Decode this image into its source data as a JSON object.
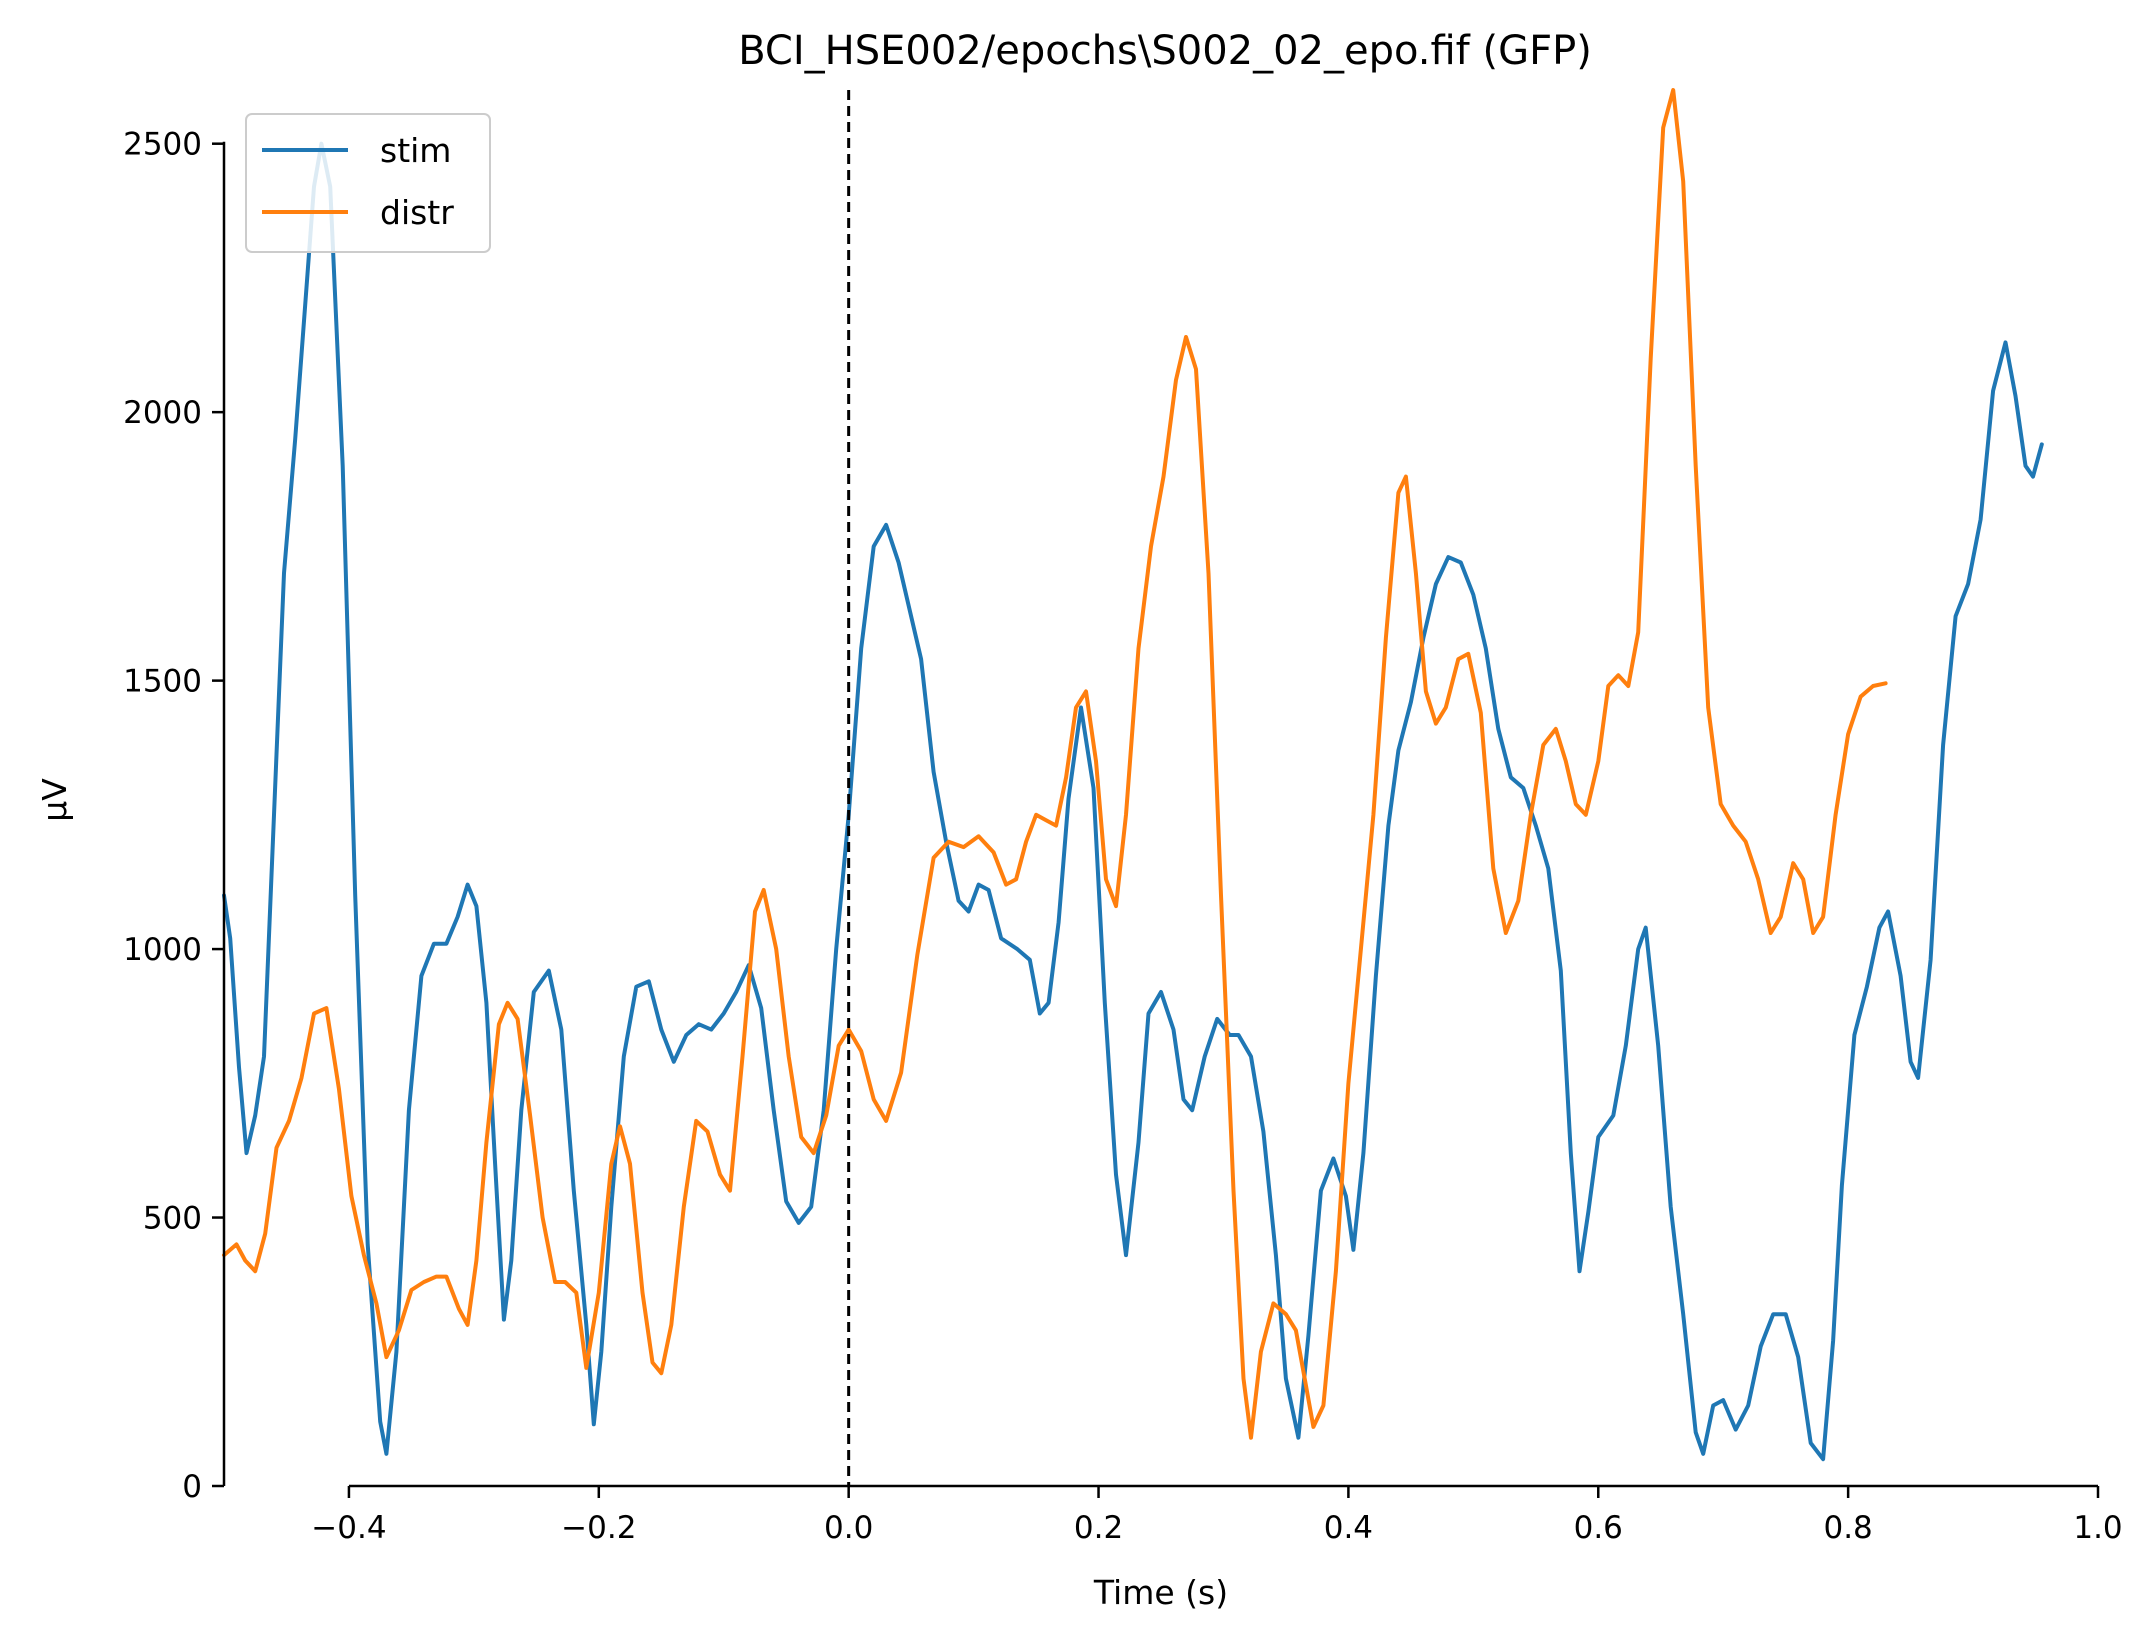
{
  "chart_data": {
    "type": "line",
    "title": "BCI_HSE002/epochs\\S002_02_epo.fif (GFP)",
    "xlabel": "Time (s)",
    "ylabel": "µV",
    "xlim": [
      -0.5,
      1.0
    ],
    "ylim": [
      0,
      2600
    ],
    "x_ticks": [
      -0.4,
      -0.2,
      0.0,
      0.2,
      0.4,
      0.6,
      0.8,
      1.0
    ],
    "x_tick_labels": [
      "−0.4",
      "−0.2",
      "0.0",
      "0.2",
      "0.4",
      "0.6",
      "0.8",
      "1.0"
    ],
    "y_ticks": [
      0,
      500,
      1000,
      1500,
      2000,
      2500
    ],
    "y_tick_labels": [
      "0",
      "500",
      "1000",
      "1500",
      "2000",
      "2500"
    ],
    "grid": false,
    "legend_position": "top-left",
    "annotations": [
      {
        "kind": "vertical-dashed-line",
        "x": 0.0
      }
    ],
    "series": [
      {
        "name": "stim",
        "color": "#1f77b4",
        "points": [
          [
            -0.5,
            1100
          ],
          [
            -0.495,
            1020
          ],
          [
            -0.488,
            780
          ],
          [
            -0.482,
            620
          ],
          [
            -0.475,
            690
          ],
          [
            -0.468,
            800
          ],
          [
            -0.46,
            1250
          ],
          [
            -0.452,
            1700
          ],
          [
            -0.443,
            1950
          ],
          [
            -0.435,
            2200
          ],
          [
            -0.428,
            2420
          ],
          [
            -0.422,
            2500
          ],
          [
            -0.415,
            2420
          ],
          [
            -0.405,
            1900
          ],
          [
            -0.395,
            1100
          ],
          [
            -0.385,
            450
          ],
          [
            -0.375,
            120
          ],
          [
            -0.37,
            60
          ],
          [
            -0.362,
            250
          ],
          [
            -0.352,
            700
          ],
          [
            -0.342,
            950
          ],
          [
            -0.332,
            1010
          ],
          [
            -0.322,
            1010
          ],
          [
            -0.313,
            1060
          ],
          [
            -0.305,
            1120
          ],
          [
            -0.298,
            1080
          ],
          [
            -0.29,
            900
          ],
          [
            -0.283,
            600
          ],
          [
            -0.276,
            310
          ],
          [
            -0.27,
            420
          ],
          [
            -0.262,
            700
          ],
          [
            -0.252,
            920
          ],
          [
            -0.24,
            960
          ],
          [
            -0.23,
            850
          ],
          [
            -0.22,
            550
          ],
          [
            -0.21,
            300
          ],
          [
            -0.204,
            115
          ],
          [
            -0.198,
            250
          ],
          [
            -0.19,
            520
          ],
          [
            -0.18,
            800
          ],
          [
            -0.17,
            930
          ],
          [
            -0.16,
            940
          ],
          [
            -0.15,
            850
          ],
          [
            -0.14,
            790
          ],
          [
            -0.13,
            840
          ],
          [
            -0.12,
            860
          ],
          [
            -0.11,
            850
          ],
          [
            -0.1,
            880
          ],
          [
            -0.09,
            920
          ],
          [
            -0.08,
            970
          ],
          [
            -0.07,
            890
          ],
          [
            -0.06,
            700
          ],
          [
            -0.05,
            530
          ],
          [
            -0.04,
            490
          ],
          [
            -0.03,
            520
          ],
          [
            -0.02,
            700
          ],
          [
            -0.01,
            1000
          ],
          [
            0.0,
            1250
          ],
          [
            0.01,
            1560
          ],
          [
            0.02,
            1750
          ],
          [
            0.03,
            1790
          ],
          [
            0.04,
            1720
          ],
          [
            0.048,
            1640
          ],
          [
            0.058,
            1540
          ],
          [
            0.068,
            1330
          ],
          [
            0.078,
            1200
          ],
          [
            0.088,
            1090
          ],
          [
            0.096,
            1070
          ],
          [
            0.104,
            1120
          ],
          [
            0.112,
            1110
          ],
          [
            0.122,
            1020
          ],
          [
            0.135,
            1000
          ],
          [
            0.145,
            980
          ],
          [
            0.153,
            880
          ],
          [
            0.16,
            900
          ],
          [
            0.168,
            1050
          ],
          [
            0.176,
            1280
          ],
          [
            0.186,
            1450
          ],
          [
            0.196,
            1300
          ],
          [
            0.205,
            900
          ],
          [
            0.214,
            580
          ],
          [
            0.222,
            430
          ],
          [
            0.232,
            640
          ],
          [
            0.24,
            880
          ],
          [
            0.25,
            920
          ],
          [
            0.26,
            850
          ],
          [
            0.268,
            720
          ],
          [
            0.275,
            700
          ],
          [
            0.285,
            800
          ],
          [
            0.295,
            870
          ],
          [
            0.305,
            840
          ],
          [
            0.312,
            840
          ],
          [
            0.322,
            800
          ],
          [
            0.332,
            660
          ],
          [
            0.342,
            430
          ],
          [
            0.35,
            200
          ],
          [
            0.36,
            90
          ],
          [
            0.368,
            280
          ],
          [
            0.378,
            550
          ],
          [
            0.388,
            610
          ],
          [
            0.398,
            540
          ],
          [
            0.404,
            440
          ],
          [
            0.412,
            620
          ],
          [
            0.422,
            950
          ],
          [
            0.432,
            1230
          ],
          [
            0.44,
            1370
          ],
          [
            0.45,
            1460
          ],
          [
            0.46,
            1580
          ],
          [
            0.47,
            1680
          ],
          [
            0.48,
            1730
          ],
          [
            0.49,
            1720
          ],
          [
            0.5,
            1660
          ],
          [
            0.51,
            1560
          ],
          [
            0.52,
            1410
          ],
          [
            0.53,
            1320
          ],
          [
            0.54,
            1300
          ],
          [
            0.55,
            1230
          ],
          [
            0.56,
            1150
          ],
          [
            0.57,
            960
          ],
          [
            0.578,
            620
          ],
          [
            0.585,
            400
          ],
          [
            0.592,
            510
          ],
          [
            0.6,
            650
          ],
          [
            0.612,
            690
          ],
          [
            0.622,
            820
          ],
          [
            0.632,
            1000
          ],
          [
            0.638,
            1040
          ],
          [
            0.648,
            820
          ],
          [
            0.658,
            520
          ],
          [
            0.668,
            320
          ],
          [
            0.678,
            100
          ],
          [
            0.684,
            60
          ],
          [
            0.692,
            150
          ],
          [
            0.7,
            160
          ],
          [
            0.71,
            105
          ],
          [
            0.72,
            150
          ],
          [
            0.73,
            260
          ],
          [
            0.74,
            320
          ],
          [
            0.75,
            320
          ],
          [
            0.76,
            240
          ],
          [
            0.77,
            80
          ],
          [
            0.78,
            50
          ],
          [
            0.788,
            270
          ],
          [
            0.795,
            560
          ],
          [
            0.805,
            840
          ],
          [
            0.815,
            930
          ],
          [
            0.825,
            1040
          ],
          [
            0.832,
            1070
          ],
          [
            0.842,
            950
          ],
          [
            0.85,
            790
          ],
          [
            0.856,
            760
          ],
          [
            0.866,
            980
          ],
          [
            0.876,
            1380
          ],
          [
            0.886,
            1620
          ],
          [
            0.896,
            1680
          ],
          [
            0.906,
            1800
          ],
          [
            0.916,
            2040
          ],
          [
            0.926,
            2130
          ],
          [
            0.934,
            2030
          ],
          [
            0.942,
            1900
          ],
          [
            0.948,
            1880
          ],
          [
            0.955,
            1940
          ]
        ]
      },
      {
        "name": "distr",
        "color": "#ff7f0e",
        "points": [
          [
            -0.5,
            430
          ],
          [
            -0.49,
            450
          ],
          [
            -0.483,
            420
          ],
          [
            -0.475,
            400
          ],
          [
            -0.467,
            470
          ],
          [
            -0.458,
            630
          ],
          [
            -0.448,
            680
          ],
          [
            -0.438,
            760
          ],
          [
            -0.428,
            880
          ],
          [
            -0.418,
            890
          ],
          [
            -0.408,
            740
          ],
          [
            -0.398,
            540
          ],
          [
            -0.388,
            430
          ],
          [
            -0.378,
            340
          ],
          [
            -0.37,
            240
          ],
          [
            -0.36,
            290
          ],
          [
            -0.35,
            365
          ],
          [
            -0.34,
            380
          ],
          [
            -0.33,
            390
          ],
          [
            -0.322,
            390
          ],
          [
            -0.312,
            330
          ],
          [
            -0.305,
            300
          ],
          [
            -0.298,
            420
          ],
          [
            -0.29,
            640
          ],
          [
            -0.28,
            860
          ],
          [
            -0.273,
            900
          ],
          [
            -0.265,
            870
          ],
          [
            -0.255,
            690
          ],
          [
            -0.245,
            500
          ],
          [
            -0.235,
            380
          ],
          [
            -0.227,
            380
          ],
          [
            -0.218,
            360
          ],
          [
            -0.21,
            220
          ],
          [
            -0.2,
            360
          ],
          [
            -0.19,
            600
          ],
          [
            -0.183,
            670
          ],
          [
            -0.175,
            600
          ],
          [
            -0.165,
            360
          ],
          [
            -0.157,
            230
          ],
          [
            -0.15,
            210
          ],
          [
            -0.142,
            300
          ],
          [
            -0.132,
            520
          ],
          [
            -0.122,
            680
          ],
          [
            -0.113,
            660
          ],
          [
            -0.103,
            580
          ],
          [
            -0.095,
            550
          ],
          [
            -0.085,
            800
          ],
          [
            -0.075,
            1070
          ],
          [
            -0.068,
            1110
          ],
          [
            -0.058,
            1000
          ],
          [
            -0.048,
            800
          ],
          [
            -0.038,
            650
          ],
          [
            -0.028,
            620
          ],
          [
            -0.018,
            690
          ],
          [
            -0.008,
            820
          ],
          [
            0.0,
            850
          ],
          [
            0.01,
            810
          ],
          [
            0.02,
            720
          ],
          [
            0.03,
            680
          ],
          [
            0.042,
            770
          ],
          [
            0.055,
            990
          ],
          [
            0.068,
            1170
          ],
          [
            0.08,
            1200
          ],
          [
            0.092,
            1190
          ],
          [
            0.104,
            1210
          ],
          [
            0.116,
            1180
          ],
          [
            0.126,
            1120
          ],
          [
            0.134,
            1130
          ],
          [
            0.142,
            1200
          ],
          [
            0.15,
            1250
          ],
          [
            0.158,
            1240
          ],
          [
            0.166,
            1230
          ],
          [
            0.174,
            1320
          ],
          [
            0.182,
            1450
          ],
          [
            0.19,
            1480
          ],
          [
            0.198,
            1350
          ],
          [
            0.206,
            1130
          ],
          [
            0.214,
            1080
          ],
          [
            0.222,
            1250
          ],
          [
            0.232,
            1560
          ],
          [
            0.242,
            1750
          ],
          [
            0.252,
            1880
          ],
          [
            0.262,
            2060
          ],
          [
            0.27,
            2140
          ],
          [
            0.278,
            2080
          ],
          [
            0.288,
            1700
          ],
          [
            0.298,
            1100
          ],
          [
            0.308,
            550
          ],
          [
            0.316,
            200
          ],
          [
            0.322,
            90
          ],
          [
            0.33,
            250
          ],
          [
            0.34,
            340
          ],
          [
            0.35,
            320
          ],
          [
            0.358,
            290
          ],
          [
            0.365,
            200
          ],
          [
            0.372,
            110
          ],
          [
            0.38,
            150
          ],
          [
            0.39,
            400
          ],
          [
            0.4,
            750
          ],
          [
            0.41,
            1000
          ],
          [
            0.42,
            1250
          ],
          [
            0.43,
            1580
          ],
          [
            0.44,
            1850
          ],
          [
            0.446,
            1880
          ],
          [
            0.454,
            1700
          ],
          [
            0.462,
            1480
          ],
          [
            0.47,
            1420
          ],
          [
            0.478,
            1450
          ],
          [
            0.488,
            1540
          ],
          [
            0.496,
            1550
          ],
          [
            0.506,
            1440
          ],
          [
            0.516,
            1150
          ],
          [
            0.526,
            1030
          ],
          [
            0.536,
            1090
          ],
          [
            0.546,
            1250
          ],
          [
            0.556,
            1380
          ],
          [
            0.566,
            1410
          ],
          [
            0.574,
            1350
          ],
          [
            0.582,
            1270
          ],
          [
            0.59,
            1250
          ],
          [
            0.6,
            1350
          ],
          [
            0.608,
            1490
          ],
          [
            0.616,
            1510
          ],
          [
            0.624,
            1490
          ],
          [
            0.632,
            1590
          ],
          [
            0.642,
            2100
          ],
          [
            0.652,
            2530
          ],
          [
            0.66,
            2600
          ],
          [
            0.668,
            2430
          ],
          [
            0.678,
            1900
          ],
          [
            0.688,
            1450
          ],
          [
            0.698,
            1270
          ],
          [
            0.708,
            1230
          ],
          [
            0.718,
            1200
          ],
          [
            0.728,
            1130
          ],
          [
            0.738,
            1030
          ],
          [
            0.746,
            1060
          ],
          [
            0.756,
            1160
          ],
          [
            0.764,
            1130
          ],
          [
            0.772,
            1030
          ],
          [
            0.78,
            1060
          ],
          [
            0.79,
            1250
          ],
          [
            0.8,
            1400
          ],
          [
            0.81,
            1470
          ],
          [
            0.82,
            1490
          ],
          [
            0.83,
            1495
          ]
        ]
      }
    ]
  }
}
